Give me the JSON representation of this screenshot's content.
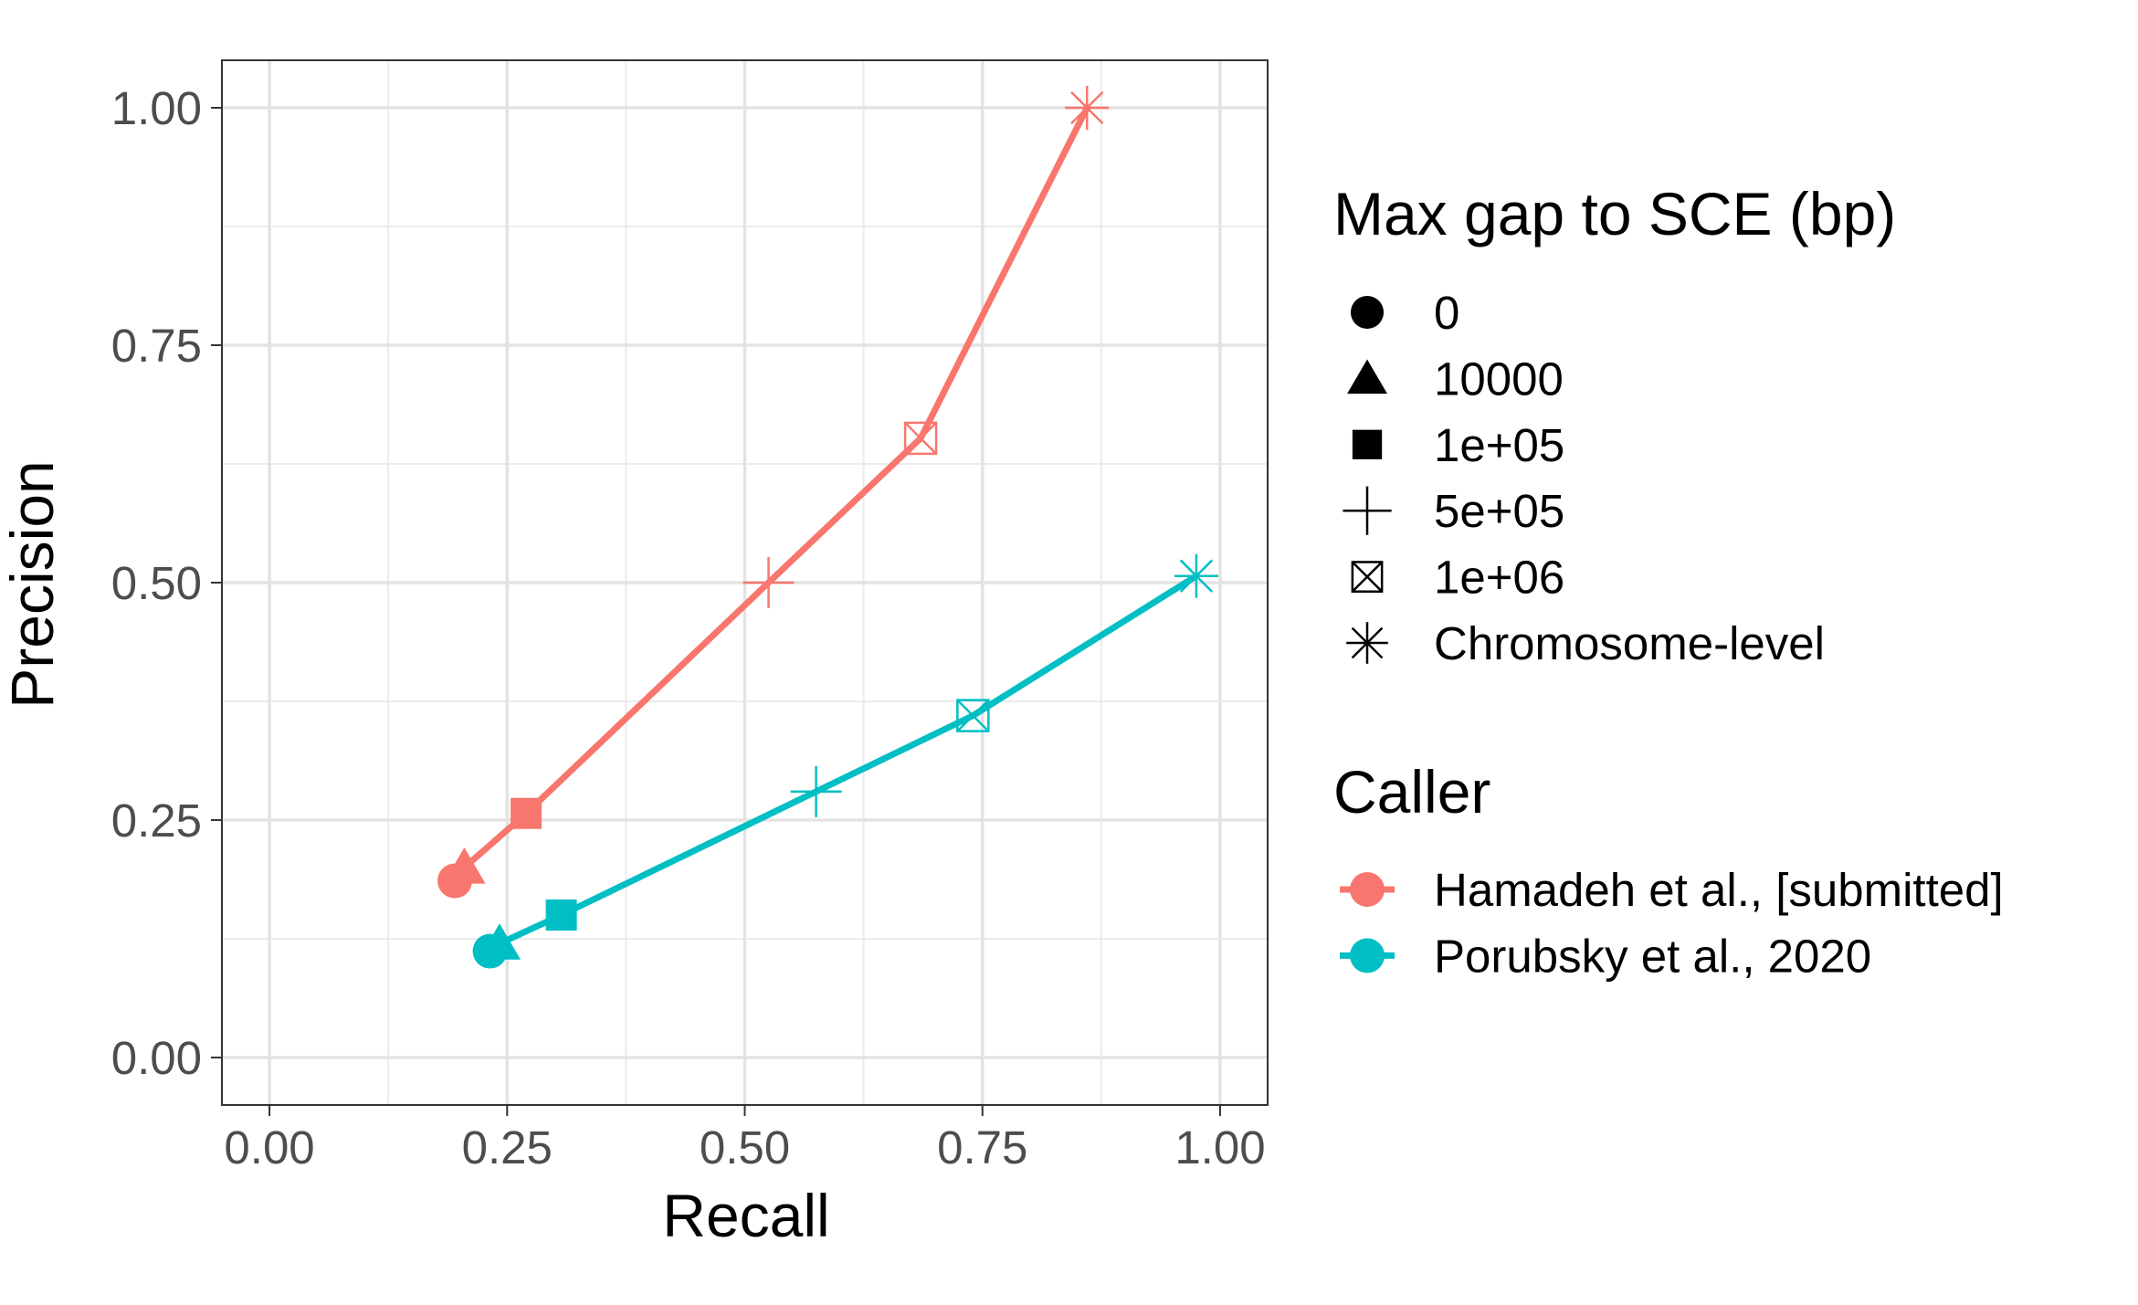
{
  "chart_data": {
    "type": "line",
    "xlabel": "Recall",
    "ylabel": "Precision",
    "xlim": [
      -0.05,
      1.05
    ],
    "ylim": [
      -0.05,
      1.05
    ],
    "x_ticks": [
      "0.00",
      "0.25",
      "0.50",
      "0.75",
      "1.00"
    ],
    "y_ticks": [
      "0.00",
      "0.25",
      "0.50",
      "0.75",
      "1.00"
    ],
    "grid": true,
    "legend_position": "right",
    "shape_legend": {
      "title": "Max gap to SCE (bp)",
      "items": [
        {
          "label": "0",
          "shape": "circle"
        },
        {
          "label": "10000",
          "shape": "triangle"
        },
        {
          "label": "1e+05",
          "shape": "square"
        },
        {
          "label": "5e+05",
          "shape": "plus"
        },
        {
          "label": "1e+06",
          "shape": "boxed-x"
        },
        {
          "label": "Chromosome-level",
          "shape": "asterisk"
        }
      ]
    },
    "color_legend": {
      "title": "Caller"
    },
    "series": [
      {
        "name": "Hamadeh et al., [submitted]",
        "color": "#F8766D",
        "points": [
          {
            "x": 0.195,
            "y": 0.186
          },
          {
            "x": 0.205,
            "y": 0.2
          },
          {
            "x": 0.27,
            "y": 0.257
          },
          {
            "x": 0.525,
            "y": 0.5
          },
          {
            "x": 0.685,
            "y": 0.652
          },
          {
            "x": 0.86,
            "y": 1.0
          }
        ]
      },
      {
        "name": "Porubsky et al., 2020",
        "color": "#00BFC4",
        "points": [
          {
            "x": 0.232,
            "y": 0.112
          },
          {
            "x": 0.242,
            "y": 0.12
          },
          {
            "x": 0.307,
            "y": 0.15
          },
          {
            "x": 0.575,
            "y": 0.28
          },
          {
            "x": 0.74,
            "y": 0.36
          },
          {
            "x": 0.975,
            "y": 0.507
          }
        ]
      }
    ]
  }
}
